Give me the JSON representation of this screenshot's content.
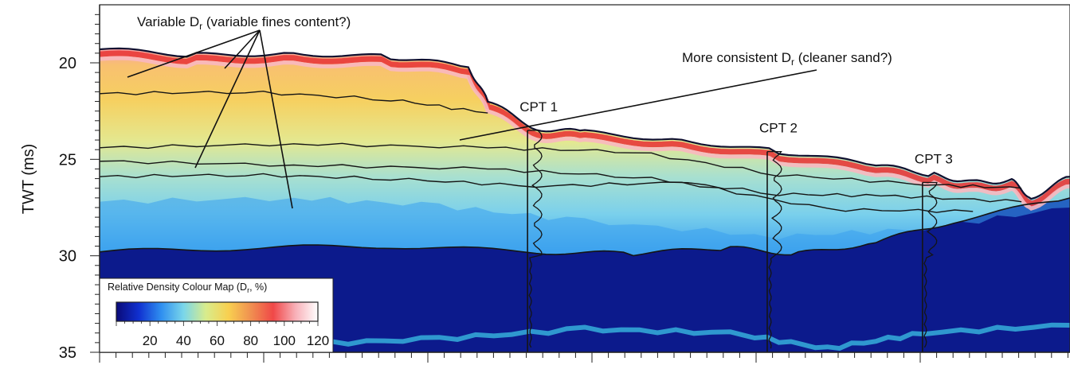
{
  "chart_data": {
    "type": "heatmap",
    "ylabel": "TWT (ms)",
    "xlabel": "",
    "ylim": [
      35,
      17.2
    ],
    "y_ticks": [
      20,
      25,
      30,
      35
    ],
    "y_tick_labels": [
      "20",
      "25",
      "30",
      "35"
    ],
    "colormap": {
      "title": "Relative Density Colour Map (D",
      "title_sub": "r",
      "title_end": ", %)",
      "range": [
        0,
        120
      ],
      "ticks": [
        20,
        40,
        60,
        80,
        100,
        120
      ],
      "tick_labels": [
        "20",
        "40",
        "60",
        "80",
        "100",
        "120"
      ],
      "colors": [
        "#0a0a78",
        "#1030d0",
        "#2f8ff0",
        "#7ad6ea",
        "#d8ec8c",
        "#f8d050",
        "#f09050",
        "#f04848",
        "#f8b0b8",
        "#ffffff"
      ]
    },
    "annotations": [
      {
        "text_main": "Variable D",
        "text_sub": "r",
        "text_end": " (variable fines content?)"
      },
      {
        "text_main": "More consistent D",
        "text_sub": "r",
        "text_end": " (cleaner sand?)"
      }
    ],
    "cpts": [
      {
        "label": "CPT 1",
        "top_twt": 23.5
      },
      {
        "label": "CPT 2",
        "top_twt": 24.6
      },
      {
        "label": "CPT 3",
        "top_twt": 26.2
      }
    ],
    "seabed_twt": [
      [
        0,
        19.3
      ],
      [
        0.1,
        19.6
      ],
      [
        0.2,
        19.5
      ],
      [
        0.3,
        19.7
      ],
      [
        0.38,
        20.2
      ],
      [
        0.4,
        22.0
      ],
      [
        0.45,
        23.4
      ],
      [
        0.5,
        23.6
      ],
      [
        0.6,
        24.0
      ],
      [
        0.7,
        24.6
      ],
      [
        0.8,
        25.3
      ],
      [
        0.86,
        25.8
      ],
      [
        0.9,
        26.2
      ],
      [
        0.94,
        26.1
      ],
      [
        0.96,
        27.0
      ],
      [
        1.0,
        25.9
      ]
    ],
    "sand_base_twt": [
      [
        0,
        29.8
      ],
      [
        0.15,
        29.6
      ],
      [
        0.3,
        29.5
      ],
      [
        0.45,
        29.8
      ],
      [
        0.55,
        29.9
      ],
      [
        0.65,
        29.6
      ],
      [
        0.72,
        29.9
      ],
      [
        0.8,
        29.3
      ],
      [
        0.88,
        28.2
      ],
      [
        1.0,
        27.0
      ]
    ]
  }
}
